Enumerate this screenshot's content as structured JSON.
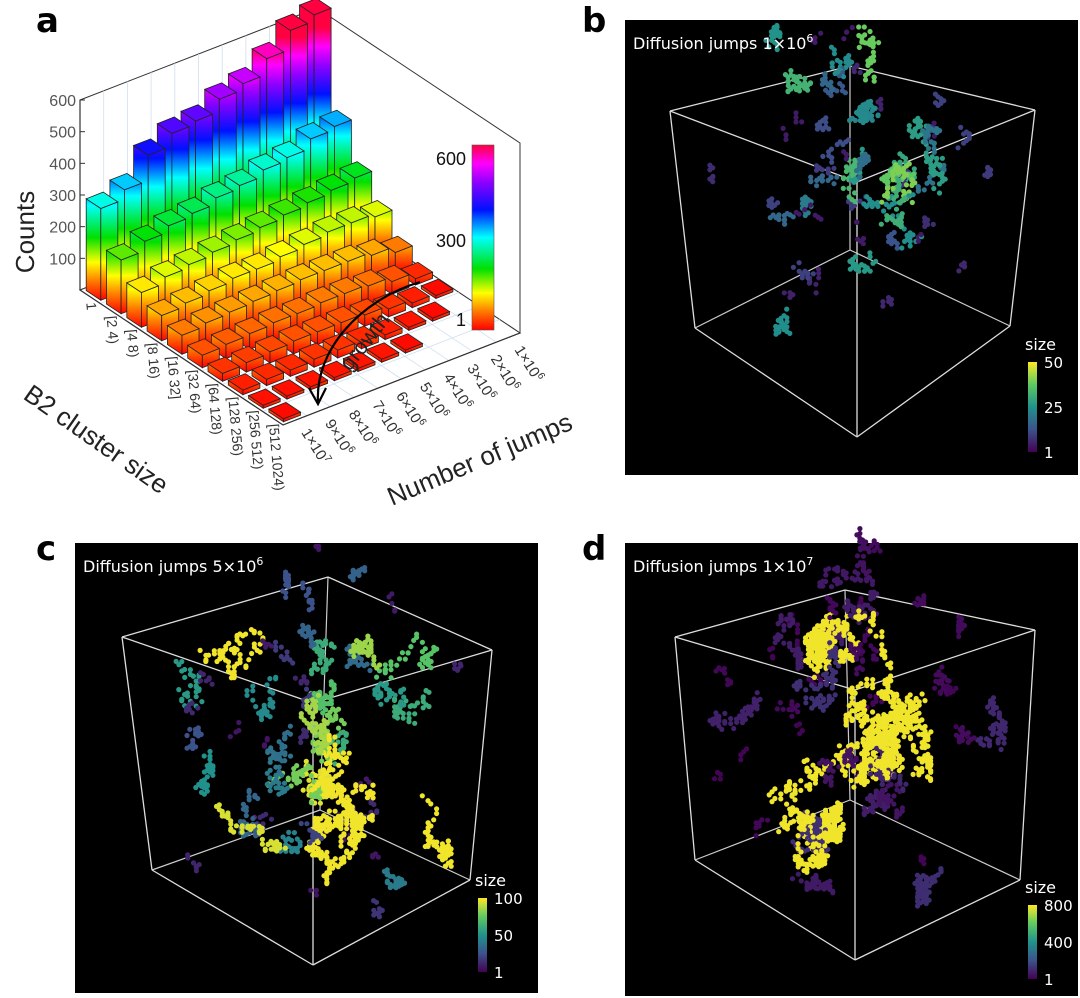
{
  "panel_labels": [
    "a",
    "b",
    "c",
    "d"
  ],
  "chart_data": [
    {
      "type": "bar3d",
      "panel": "a",
      "ylabel": "Counts",
      "xlabel": "B2 cluster size",
      "zlabel": "Number of jumps",
      "yticks": [
        "100",
        "200",
        "300",
        "400",
        "500",
        "600"
      ],
      "ylim": [
        0,
        600
      ],
      "size_categories": [
        "1",
        "[2 4)",
        "[4 8)",
        "[8 16)",
        "[16 32]",
        "[32 64)",
        "[64 128)",
        "[128 256)",
        "[256 512)",
        "[512 1024)"
      ],
      "jump_categories": [
        {
          "base": "1×10",
          "exp": "6"
        },
        {
          "base": "2×10",
          "exp": "6"
        },
        {
          "base": "3×10",
          "exp": "6"
        },
        {
          "base": "4×10",
          "exp": "6"
        },
        {
          "base": "5×10",
          "exp": "6"
        },
        {
          "base": "6×10",
          "exp": "6"
        },
        {
          "base": "7×10",
          "exp": "6"
        },
        {
          "base": "8×10",
          "exp": "6"
        },
        {
          "base": "9×10",
          "exp": "6"
        },
        {
          "base": "1×10",
          "exp": "7"
        }
      ],
      "values": [
        [
          640,
          620,
          560,
          510,
          490,
          450,
          440,
          400,
          320,
          290
        ],
        [
          330,
          320,
          290,
          280,
          260,
          250,
          230,
          220,
          200,
          170
        ],
        [
          210,
          200,
          190,
          180,
          170,
          160,
          150,
          140,
          130,
          110
        ],
        [
          130,
          140,
          140,
          130,
          120,
          110,
          110,
          100,
          90,
          80
        ],
        [
          60,
          80,
          90,
          90,
          90,
          85,
          80,
          75,
          70,
          60
        ],
        [
          20,
          40,
          55,
          60,
          60,
          55,
          55,
          50,
          45,
          40
        ],
        [
          5,
          15,
          25,
          35,
          40,
          40,
          40,
          35,
          30,
          25
        ],
        [
          0,
          5,
          10,
          15,
          20,
          25,
          25,
          20,
          20,
          15
        ],
        [
          0,
          0,
          0,
          5,
          10,
          10,
          10,
          10,
          8,
          8
        ],
        [
          0,
          0,
          0,
          0,
          0,
          0,
          0,
          0,
          0,
          5
        ]
      ],
      "colorbar": {
        "labels": [
          "600",
          "300",
          "1"
        ],
        "colormap": "rainbow"
      },
      "annotation": "growth"
    },
    {
      "type": "scatter3d",
      "panel": "b",
      "title": {
        "base": "Diffusion jumps 1×10",
        "exp": "6"
      },
      "colorbar": {
        "title": "size",
        "labels": [
          "50",
          "25",
          "1"
        ],
        "colormap": "viridis"
      }
    },
    {
      "type": "scatter3d",
      "panel": "c",
      "title": {
        "base": "Diffusion jumps 5×10",
        "exp": "6"
      },
      "colorbar": {
        "title": "size",
        "labels": [
          "100",
          "50",
          "1"
        ],
        "colormap": "viridis"
      }
    },
    {
      "type": "scatter3d",
      "panel": "d",
      "title": {
        "base": "Diffusion jumps 1×10",
        "exp": "7"
      },
      "colorbar": {
        "title": "size",
        "labels": [
          "800",
          "400",
          "1"
        ],
        "colormap": "viridis"
      }
    }
  ]
}
